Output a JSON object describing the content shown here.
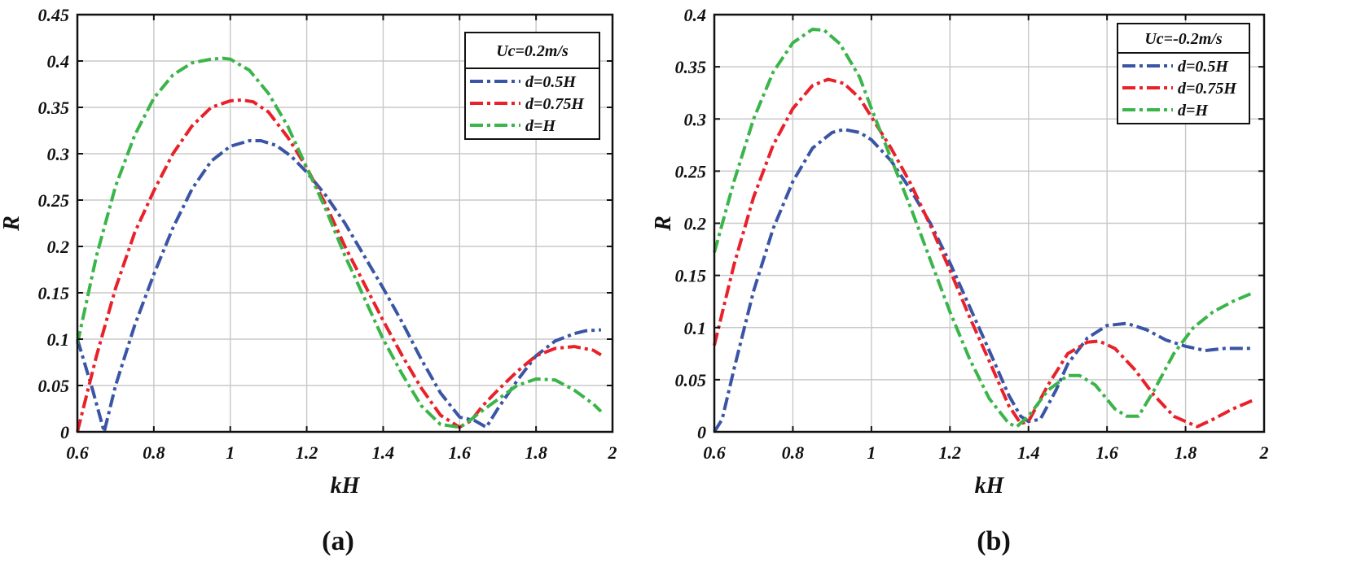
{
  "chart_data": [
    {
      "type": "line",
      "panel_label": "(a)",
      "xlabel": "kH",
      "ylabel": "R",
      "xlim": [
        0.6,
        2
      ],
      "ylim": [
        0,
        0.45
      ],
      "xticks": [
        0.6,
        0.8,
        1,
        1.2,
        1.4,
        1.6,
        1.8,
        2
      ],
      "xtick_labels": [
        "0.6",
        "0.8",
        "1",
        "1.2",
        "1.4",
        "1.6",
        "1.8",
        "2"
      ],
      "yticks": [
        0,
        0.05,
        0.1,
        0.15,
        0.2,
        0.25,
        0.3,
        0.35,
        0.4,
        0.45
      ],
      "ytick_labels": [
        "0",
        "0.05",
        "0.1",
        "0.15",
        "0.2",
        "0.25",
        "0.3",
        "0.35",
        "0.4",
        "0.45"
      ],
      "grid": true,
      "legend": {
        "title": "Uc=0.2m/s",
        "placement": "top-right",
        "entries": [
          "d=0.5H",
          "d=0.75H",
          "d=H"
        ]
      },
      "series": [
        {
          "name": "d=0.5H",
          "color": "#3a55a5",
          "x": [
            0.6,
            0.64,
            0.67,
            0.7,
            0.75,
            0.8,
            0.85,
            0.9,
            0.95,
            1.0,
            1.05,
            1.08,
            1.12,
            1.16,
            1.2,
            1.25,
            1.3,
            1.35,
            1.4,
            1.45,
            1.5,
            1.55,
            1.6,
            1.64,
            1.67,
            1.7,
            1.75,
            1.8,
            1.85,
            1.9,
            1.93,
            1.97
          ],
          "y": [
            0.1,
            0.045,
            0.0,
            0.05,
            0.115,
            0.17,
            0.22,
            0.262,
            0.292,
            0.308,
            0.314,
            0.314,
            0.309,
            0.297,
            0.28,
            0.255,
            0.225,
            0.19,
            0.155,
            0.118,
            0.078,
            0.042,
            0.016,
            0.012,
            0.005,
            0.025,
            0.055,
            0.082,
            0.098,
            0.106,
            0.109,
            0.11
          ]
        },
        {
          "name": "d=0.75H",
          "color": "#e8212a",
          "x": [
            0.6,
            0.65,
            0.7,
            0.75,
            0.8,
            0.85,
            0.9,
            0.95,
            1.0,
            1.03,
            1.06,
            1.1,
            1.15,
            1.2,
            1.25,
            1.3,
            1.35,
            1.4,
            1.45,
            1.5,
            1.55,
            1.6,
            1.63,
            1.66,
            1.7,
            1.75,
            1.8,
            1.85,
            1.9,
            1.95,
            1.97
          ],
          "y": [
            0.0,
            0.082,
            0.155,
            0.215,
            0.26,
            0.3,
            0.33,
            0.35,
            0.357,
            0.358,
            0.356,
            0.345,
            0.318,
            0.285,
            0.245,
            0.2,
            0.16,
            0.12,
            0.082,
            0.047,
            0.018,
            0.005,
            0.012,
            0.028,
            0.045,
            0.065,
            0.082,
            0.09,
            0.092,
            0.088,
            0.083
          ]
        },
        {
          "name": "d=H",
          "color": "#3bb54a",
          "x": [
            0.6,
            0.65,
            0.7,
            0.75,
            0.8,
            0.85,
            0.9,
            0.95,
            0.98,
            1.0,
            1.05,
            1.1,
            1.15,
            1.2,
            1.25,
            1.3,
            1.35,
            1.4,
            1.45,
            1.5,
            1.55,
            1.6,
            1.62,
            1.65,
            1.7,
            1.75,
            1.8,
            1.85,
            1.9,
            1.95,
            1.97
          ],
          "y": [
            0.095,
            0.19,
            0.265,
            0.32,
            0.36,
            0.385,
            0.398,
            0.402,
            0.403,
            0.402,
            0.39,
            0.365,
            0.33,
            0.285,
            0.24,
            0.19,
            0.145,
            0.1,
            0.062,
            0.028,
            0.008,
            0.005,
            0.01,
            0.02,
            0.035,
            0.05,
            0.057,
            0.056,
            0.045,
            0.03,
            0.022
          ]
        }
      ]
    },
    {
      "type": "line",
      "panel_label": "(b)",
      "xlabel": "kH",
      "ylabel": "R",
      "xlim": [
        0.6,
        2
      ],
      "ylim": [
        0,
        0.4
      ],
      "xticks": [
        0.6,
        0.8,
        1,
        1.2,
        1.4,
        1.6,
        1.8,
        2
      ],
      "xtick_labels": [
        "0.6",
        "0.8",
        "1",
        "1.2",
        "1.4",
        "1.6",
        "1.8",
        "2"
      ],
      "yticks": [
        0,
        0.05,
        0.1,
        0.15,
        0.2,
        0.25,
        0.3,
        0.35,
        0.4
      ],
      "ytick_labels": [
        "0",
        "0.05",
        "0.1",
        "0.15",
        "0.2",
        "0.25",
        "0.3",
        "0.35",
        "0.4"
      ],
      "grid": true,
      "legend": {
        "title": "Uc=-0.2m/s",
        "placement": "top-right",
        "entries": [
          "d=0.5H",
          "d=0.75H",
          "d=H"
        ]
      },
      "series": [
        {
          "name": "d=0.5H",
          "color": "#3a55a5",
          "x": [
            0.6,
            0.62,
            0.65,
            0.7,
            0.75,
            0.8,
            0.85,
            0.9,
            0.93,
            0.97,
            1.0,
            1.05,
            1.1,
            1.15,
            1.2,
            1.25,
            1.3,
            1.35,
            1.38,
            1.4,
            1.43,
            1.47,
            1.5,
            1.55,
            1.6,
            1.65,
            1.7,
            1.75,
            1.8,
            1.85,
            1.9,
            1.97
          ],
          "y": [
            0.0,
            0.012,
            0.06,
            0.135,
            0.195,
            0.24,
            0.272,
            0.287,
            0.29,
            0.287,
            0.28,
            0.26,
            0.232,
            0.2,
            0.162,
            0.12,
            0.078,
            0.035,
            0.015,
            0.01,
            0.012,
            0.04,
            0.065,
            0.09,
            0.102,
            0.104,
            0.098,
            0.088,
            0.082,
            0.078,
            0.08,
            0.08
          ]
        },
        {
          "name": "d=0.75H",
          "color": "#e8212a",
          "x": [
            0.6,
            0.65,
            0.7,
            0.75,
            0.8,
            0.85,
            0.89,
            0.93,
            0.97,
            1.0,
            1.05,
            1.1,
            1.15,
            1.2,
            1.25,
            1.3,
            1.35,
            1.38,
            1.4,
            1.45,
            1.5,
            1.55,
            1.58,
            1.62,
            1.67,
            1.72,
            1.77,
            1.83,
            1.87,
            1.92,
            1.97
          ],
          "y": [
            0.083,
            0.16,
            0.225,
            0.275,
            0.31,
            0.332,
            0.338,
            0.334,
            0.32,
            0.302,
            0.272,
            0.238,
            0.198,
            0.155,
            0.11,
            0.068,
            0.025,
            0.008,
            0.01,
            0.045,
            0.075,
            0.086,
            0.087,
            0.08,
            0.06,
            0.035,
            0.015,
            0.005,
            0.012,
            0.022,
            0.03
          ]
        },
        {
          "name": "d=H",
          "color": "#3bb54a",
          "x": [
            0.6,
            0.65,
            0.7,
            0.75,
            0.8,
            0.85,
            0.88,
            0.92,
            0.97,
            1.0,
            1.05,
            1.1,
            1.15,
            1.2,
            1.25,
            1.3,
            1.35,
            1.37,
            1.4,
            1.45,
            1.5,
            1.53,
            1.57,
            1.62,
            1.65,
            1.68,
            1.72,
            1.77,
            1.82,
            1.87,
            1.92,
            1.97
          ],
          "y": [
            0.172,
            0.24,
            0.3,
            0.345,
            0.373,
            0.386,
            0.385,
            0.372,
            0.34,
            0.31,
            0.262,
            0.215,
            0.165,
            0.115,
            0.07,
            0.032,
            0.008,
            0.005,
            0.015,
            0.04,
            0.054,
            0.054,
            0.045,
            0.022,
            0.015,
            0.015,
            0.04,
            0.075,
            0.1,
            0.115,
            0.125,
            0.133
          ]
        }
      ]
    }
  ]
}
